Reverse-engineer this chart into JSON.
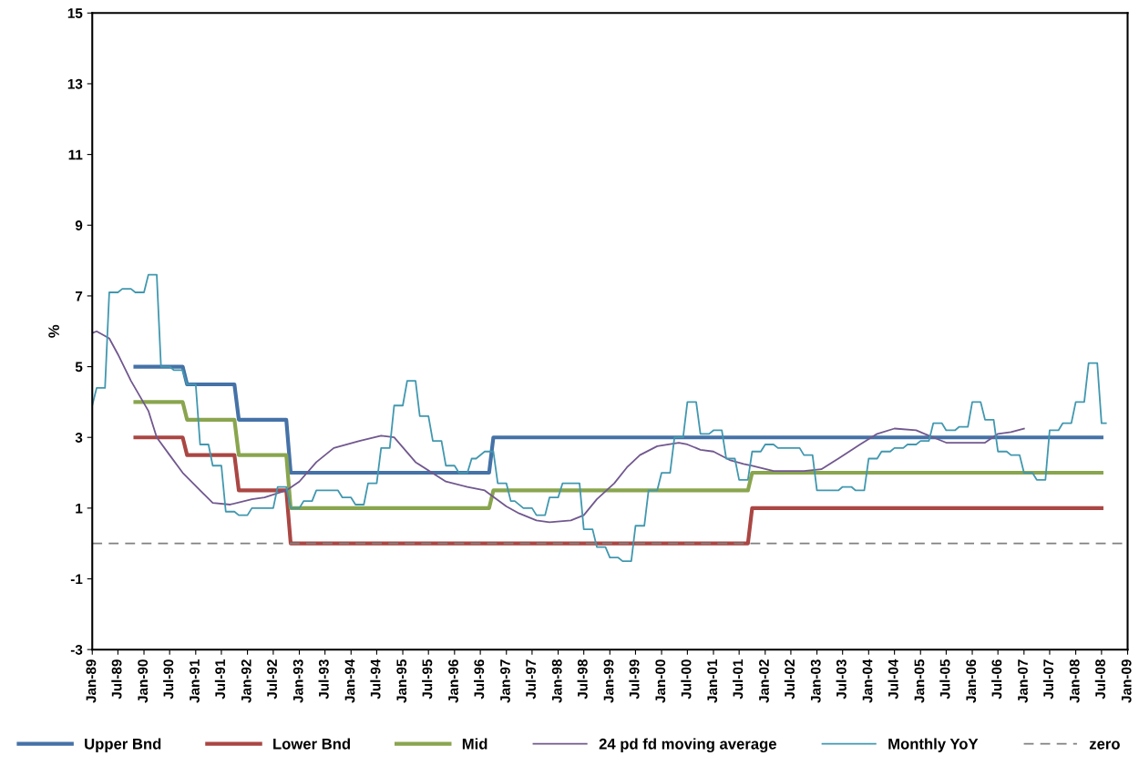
{
  "chart_data": {
    "type": "line",
    "ylabel": "%",
    "xlim": [
      "1989-01",
      "2009-01"
    ],
    "ylim": [
      -3,
      15
    ],
    "yticks": [
      -3,
      -1,
      1,
      3,
      5,
      7,
      9,
      11,
      13,
      15
    ],
    "xticks": [
      {
        "value": "1989-01",
        "label": "Jan-89"
      },
      {
        "value": "1989-07",
        "label": "Jul-89"
      },
      {
        "value": "1990-01",
        "label": "Jan-90"
      },
      {
        "value": "1990-07",
        "label": "Jul-90"
      },
      {
        "value": "1991-01",
        "label": "Jan-91"
      },
      {
        "value": "1991-07",
        "label": "Jul-91"
      },
      {
        "value": "1992-01",
        "label": "Jan-92"
      },
      {
        "value": "1992-07",
        "label": "Jul-92"
      },
      {
        "value": "1993-01",
        "label": "Jan-93"
      },
      {
        "value": "1993-07",
        "label": "Jul-93"
      },
      {
        "value": "1994-01",
        "label": "Jan-94"
      },
      {
        "value": "1994-07",
        "label": "Jul-94"
      },
      {
        "value": "1995-01",
        "label": "Jan-95"
      },
      {
        "value": "1995-07",
        "label": "Jul-95"
      },
      {
        "value": "1996-01",
        "label": "Jan-96"
      },
      {
        "value": "1996-07",
        "label": "Jul-96"
      },
      {
        "value": "1997-01",
        "label": "Jan-97"
      },
      {
        "value": "1997-07",
        "label": "Jul-97"
      },
      {
        "value": "1998-01",
        "label": "Jan-98"
      },
      {
        "value": "1998-07",
        "label": "Jul-98"
      },
      {
        "value": "1999-01",
        "label": "Jan-99"
      },
      {
        "value": "1999-07",
        "label": "Jul-99"
      },
      {
        "value": "2000-01",
        "label": "Jan-00"
      },
      {
        "value": "2000-07",
        "label": "Jul-00"
      },
      {
        "value": "2001-01",
        "label": "Jan-01"
      },
      {
        "value": "2001-07",
        "label": "Jul-01"
      },
      {
        "value": "2002-01",
        "label": "Jan-02"
      },
      {
        "value": "2002-07",
        "label": "Jul-02"
      },
      {
        "value": "2003-01",
        "label": "Jan-03"
      },
      {
        "value": "2003-07",
        "label": "Jul-03"
      },
      {
        "value": "2004-01",
        "label": "Jan-04"
      },
      {
        "value": "2004-07",
        "label": "Jul-04"
      },
      {
        "value": "2005-01",
        "label": "Jan-05"
      },
      {
        "value": "2005-07",
        "label": "Jul-05"
      },
      {
        "value": "2006-01",
        "label": "Jan-06"
      },
      {
        "value": "2006-07",
        "label": "Jul-06"
      },
      {
        "value": "2007-01",
        "label": "Jan-07"
      },
      {
        "value": "2007-07",
        "label": "Jul-07"
      },
      {
        "value": "2008-01",
        "label": "Jan-08"
      },
      {
        "value": "2008-07",
        "label": "Jul-08"
      },
      {
        "value": "2009-01",
        "label": "Jan-09"
      }
    ],
    "grid": false,
    "legend": "bottom",
    "marker": "none",
    "line_style": "solid",
    "series": [
      {
        "name": "Upper Bnd",
        "color": "#4572a7",
        "x": [
          "1989-11",
          "1990-10",
          "1990-11",
          "1991-10",
          "1991-11",
          "1992-10",
          "1992-11",
          "1996-09",
          "1996-10",
          "2008-07"
        ],
        "values": [
          5,
          5,
          4.5,
          4.5,
          3.5,
          3.5,
          2,
          2,
          3,
          3
        ]
      },
      {
        "name": "Lower Bnd",
        "color": "#aa4643",
        "x": [
          "1989-11",
          "1990-10",
          "1990-11",
          "1991-10",
          "1991-11",
          "1992-10",
          "1992-11",
          "2001-09",
          "2001-10",
          "2008-07"
        ],
        "values": [
          3,
          3,
          2.5,
          2.5,
          1.5,
          1.5,
          0,
          0,
          1,
          1
        ]
      },
      {
        "name": "Mid",
        "color": "#89a54e",
        "x": [
          "1989-11",
          "1990-10",
          "1990-11",
          "1991-10",
          "1991-11",
          "1992-10",
          "1992-11",
          "1996-09",
          "1996-10",
          "2001-09",
          "2001-10",
          "2008-07"
        ],
        "values": [
          4,
          4,
          3.5,
          3.5,
          2.5,
          2.5,
          1,
          1,
          1.5,
          1.5,
          2,
          2
        ]
      },
      {
        "name": "24 pd fd moving average",
        "color": "#71588f",
        "x": [
          "1989-01",
          "1989-02",
          "1989-05",
          "1989-07",
          "1989-10",
          "1990-02",
          "1990-04",
          "1990-07",
          "1990-10",
          "1991-02",
          "1991-05",
          "1991-09",
          "1992-02",
          "1992-05",
          "1992-10",
          "1993-01",
          "1993-05",
          "1993-09",
          "1994-03",
          "1994-08",
          "1994-11",
          "1995-04",
          "1995-11",
          "1996-04",
          "1996-08",
          "1997-01",
          "1997-04",
          "1997-08",
          "1997-11",
          "1998-04",
          "1998-07",
          "1998-10",
          "1999-02",
          "1999-05",
          "1999-08",
          "1999-12",
          "2000-05",
          "2000-07",
          "2000-10",
          "2001-01",
          "2001-05",
          "2001-08",
          "2001-10",
          "2002-03",
          "2002-10",
          "2003-02",
          "2003-06",
          "2003-11",
          "2004-03",
          "2004-07",
          "2004-12",
          "2005-03",
          "2005-07",
          "2006-04",
          "2006-07",
          "2006-10",
          "2007-01"
        ],
        "values": [
          5.95,
          6.0,
          5.8,
          5.35,
          4.6,
          3.75,
          3.0,
          2.5,
          2.0,
          1.5,
          1.15,
          1.1,
          1.25,
          1.3,
          1.5,
          1.75,
          2.3,
          2.7,
          2.9,
          3.05,
          3.0,
          2.3,
          1.75,
          1.6,
          1.5,
          1.05,
          0.85,
          0.65,
          0.6,
          0.65,
          0.8,
          1.25,
          1.7,
          2.15,
          2.5,
          2.75,
          2.85,
          2.8,
          2.65,
          2.6,
          2.35,
          2.25,
          2.2,
          2.05,
          2.05,
          2.1,
          2.4,
          2.8,
          3.1,
          3.25,
          3.2,
          3.05,
          2.85,
          2.85,
          3.1,
          3.15,
          3.25
        ]
      },
      {
        "name": "Monthly YoY",
        "color": "#4198af",
        "x": [
          "1989-01",
          "1989-02",
          "1989-04",
          "1989-05",
          "1989-07",
          "1989-08",
          "1989-10",
          "1989-11",
          "1990-01",
          "1990-02",
          "1990-04",
          "1990-05",
          "1990-07",
          "1990-08",
          "1990-10",
          "1990-11",
          "1991-01",
          "1991-02",
          "1991-04",
          "1991-05",
          "1991-07",
          "1991-08",
          "1991-10",
          "1991-11",
          "1992-01",
          "1992-02",
          "1992-07",
          "1992-08",
          "1992-10",
          "1992-11",
          "1993-01",
          "1993-02",
          "1993-04",
          "1993-05",
          "1993-10",
          "1993-11",
          "1994-01",
          "1994-02",
          "1994-04",
          "1994-05",
          "1994-07",
          "1994-08",
          "1994-10",
          "1994-11",
          "1995-01",
          "1995-02",
          "1995-04",
          "1995-05",
          "1995-07",
          "1995-08",
          "1995-10",
          "1995-11",
          "1996-01",
          "1996-02",
          "1996-04",
          "1996-05",
          "1996-06",
          "1996-08",
          "1996-10",
          "1996-11",
          "1997-01",
          "1997-02",
          "1997-03",
          "1997-05",
          "1997-07",
          "1997-08",
          "1997-10",
          "1997-11",
          "1998-01",
          "1998-02",
          "1998-06",
          "1998-07",
          "1998-09",
          "1998-10",
          "1998-12",
          "1999-01",
          "1999-03",
          "1999-04",
          "1999-06",
          "1999-07",
          "1999-09",
          "1999-10",
          "1999-12",
          "2000-01",
          "2000-03",
          "2000-04",
          "2000-06",
          "2000-07",
          "2000-09",
          "2000-10",
          "2000-12",
          "2001-01",
          "2001-03",
          "2001-04",
          "2001-06",
          "2001-07",
          "2001-09",
          "2001-10",
          "2001-12",
          "2002-01",
          "2002-03",
          "2002-04",
          "2002-06",
          "2002-07",
          "2002-09",
          "2002-10",
          "2002-12",
          "2003-01",
          "2003-03",
          "2003-04",
          "2003-06",
          "2003-07",
          "2003-09",
          "2003-10",
          "2003-12",
          "2004-01",
          "2004-03",
          "2004-04",
          "2004-06",
          "2004-07",
          "2004-09",
          "2004-10",
          "2004-12",
          "2005-01",
          "2005-03",
          "2005-04",
          "2005-06",
          "2005-07",
          "2005-09",
          "2005-10",
          "2005-12",
          "2006-01",
          "2006-03",
          "2006-04",
          "2006-06",
          "2006-07",
          "2006-09",
          "2006-10",
          "2006-12",
          "2007-01",
          "2007-03",
          "2007-04",
          "2007-06",
          "2007-07",
          "2007-09",
          "2007-10",
          "2007-12",
          "2008-01",
          "2008-03",
          "2008-04",
          "2008-06",
          "2008-07",
          "2008-08"
        ],
        "values": [
          3.9,
          4.4,
          4.4,
          7.1,
          7.1,
          7.2,
          7.2,
          7.1,
          7.1,
          7.6,
          7.6,
          5.0,
          5.0,
          4.9,
          4.9,
          4.5,
          4.5,
          2.8,
          2.8,
          2.2,
          2.2,
          0.9,
          0.9,
          0.8,
          0.8,
          1.0,
          1.0,
          1.6,
          1.6,
          1.0,
          1.0,
          1.2,
          1.2,
          1.5,
          1.5,
          1.3,
          1.3,
          1.1,
          1.1,
          1.7,
          1.7,
          2.7,
          2.7,
          3.9,
          3.9,
          4.6,
          4.6,
          3.6,
          3.6,
          2.9,
          2.9,
          2.2,
          2.2,
          2.0,
          2.0,
          2.4,
          2.4,
          2.6,
          2.6,
          1.7,
          1.7,
          1.2,
          1.2,
          1.0,
          1.0,
          0.8,
          0.8,
          1.3,
          1.3,
          1.7,
          1.7,
          0.4,
          0.4,
          -0.1,
          -0.1,
          -0.4,
          -0.4,
          -0.5,
          -0.5,
          0.5,
          0.5,
          1.5,
          1.5,
          2.0,
          2.0,
          3.0,
          3.0,
          4.0,
          4.0,
          3.1,
          3.1,
          3.2,
          3.2,
          2.4,
          2.4,
          1.8,
          1.8,
          2.6,
          2.6,
          2.8,
          2.8,
          2.7,
          2.7,
          2.7,
          2.7,
          2.5,
          2.5,
          1.5,
          1.5,
          1.5,
          1.5,
          1.6,
          1.6,
          1.5,
          1.5,
          2.4,
          2.4,
          2.6,
          2.6,
          2.7,
          2.7,
          2.8,
          2.8,
          2.9,
          2.9,
          3.4,
          3.4,
          3.2,
          3.2,
          3.3,
          3.3,
          4.0,
          4.0,
          3.5,
          3.5,
          2.6,
          2.6,
          2.5,
          2.5,
          2.0,
          2.0,
          1.8,
          1.8,
          3.2,
          3.2,
          3.4,
          3.4,
          4.0,
          4.0,
          5.1,
          5.1,
          3.4,
          3.4
        ]
      }
    ],
    "ref_lines": [
      {
        "axis": "y",
        "value": 0,
        "label": "zero",
        "color": "#808080",
        "line_style": "dashed"
      }
    ]
  }
}
